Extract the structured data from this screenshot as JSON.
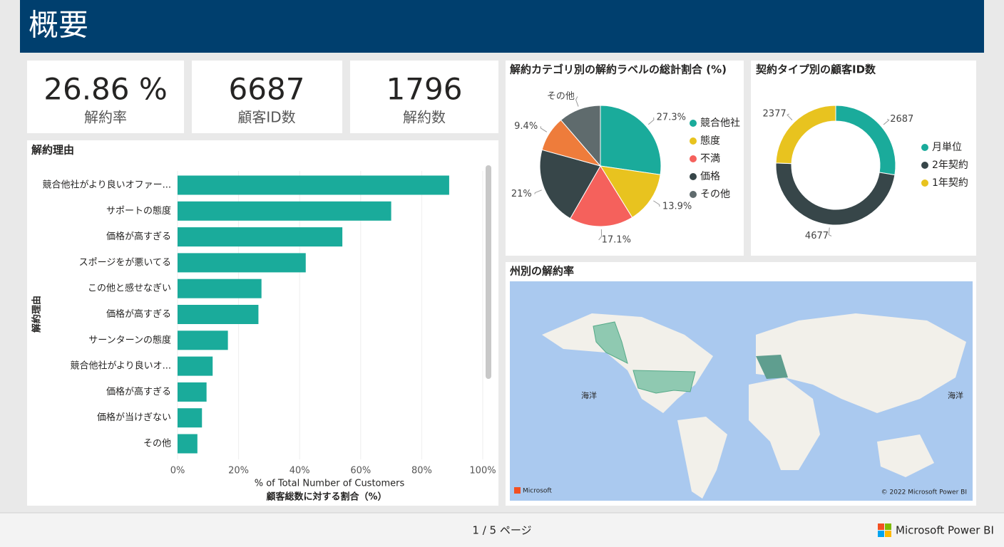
{
  "header": {
    "title": "概要"
  },
  "kpis": [
    {
      "value": "26.86 %",
      "label": "解約率"
    },
    {
      "value": "6687",
      "label": "顧客ID数"
    },
    {
      "value": "1796",
      "label": "解約数"
    }
  ],
  "chart_data": [
    {
      "type": "bar",
      "orientation": "horizontal",
      "title": "解約理由",
      "categories": [
        "競合他社がより良いオファー...",
        "サポートの態度",
        "価格が高すぎる",
        "スポージをが悪いてる",
        "この他と感せなぎい",
        "価格が高すぎる",
        "サーンターンの態度",
        "競合他社がより良いオ...",
        "価格が高すぎる",
        "価格が当けぎない",
        "その他"
      ],
      "values": [
        89,
        70,
        54,
        42,
        27.5,
        26.5,
        16.5,
        11.5,
        9.5,
        8,
        6.5
      ],
      "color": "#1aab9b",
      "xlim": [
        0,
        100
      ],
      "xticks": [
        {
          "value": 0,
          "label": "0%"
        },
        {
          "value": 20,
          "label": "20%"
        },
        {
          "value": 40,
          "label": "40%"
        },
        {
          "value": 60,
          "label": "60%"
        },
        {
          "value": 80,
          "label": "80%"
        },
        {
          "value": 100,
          "label": "100%"
        }
      ],
      "xlabel": "% of Total Number of Customers",
      "xlabel_ja": "顧客総数に対する割合（%）",
      "ylabel": "解約理由",
      "grid": true
    },
    {
      "type": "pie",
      "title": "解約カテゴリ別の解約ラベルの総計割合 (%)",
      "categories": [
        "競合他社",
        "態度",
        "不満",
        "価格",
        null,
        "その他"
      ],
      "values": [
        27.3,
        13.9,
        17.1,
        21,
        9.4,
        11.3
      ],
      "value_labels": [
        "27.3%",
        "13.9%",
        "17.1%",
        "21%",
        "9.4%",
        null
      ],
      "colors": [
        "#1aab9b",
        "#e8c31f",
        "#f5615c",
        "#374649",
        "#ee7c3b",
        "#5f6b6d"
      ]
    },
    {
      "type": "donut",
      "title": "契約タイプ別の顧客ID数",
      "categories": [
        "月単位",
        "2年契約",
        "1年契約"
      ],
      "values": [
        2687,
        4677,
        2377
      ],
      "colors": [
        "#1aab9b",
        "#374649",
        "#e8c31f"
      ]
    }
  ],
  "map": {
    "title": "州別の解約率",
    "labels": [
      "海洋",
      "海洋"
    ],
    "attribution": "Microsoft",
    "copyright": "© 2022 Microsoft Power BI"
  },
  "footer": {
    "page": "1 / 5 ページ",
    "brand": "Microsoft Power BI"
  }
}
